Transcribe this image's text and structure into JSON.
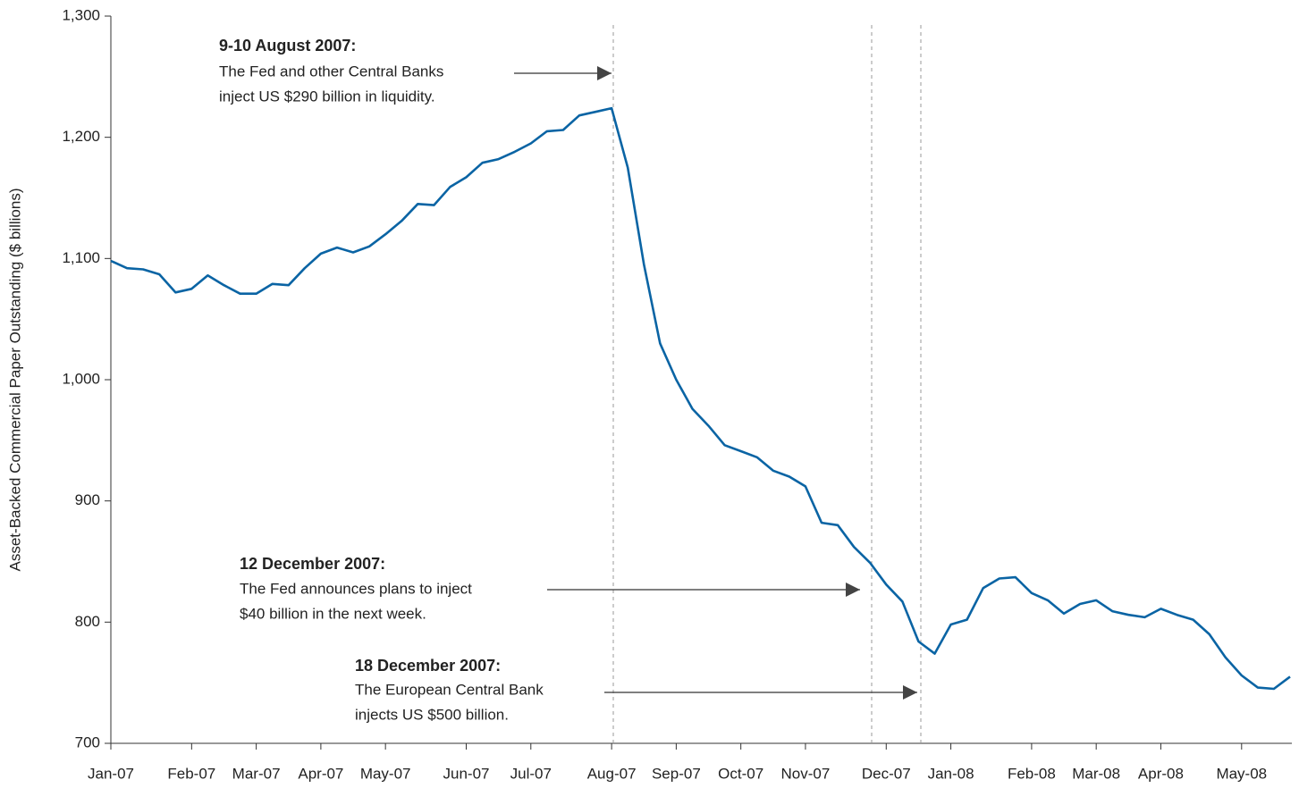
{
  "chart_data": {
    "type": "line",
    "y_label": "Asset-Backed Commercial Paper Outstanding ($ billions)",
    "categories": [
      "Jan-07",
      null,
      null,
      null,
      null,
      "Feb-07",
      null,
      null,
      null,
      "Mar-07",
      null,
      null,
      null,
      "Apr-07",
      null,
      null,
      null,
      "May-07",
      null,
      null,
      null,
      null,
      "Jun-07",
      null,
      null,
      null,
      "Jul-07",
      null,
      null,
      null,
      null,
      "Aug-07",
      null,
      null,
      null,
      "Sep-07",
      null,
      null,
      null,
      "Oct-07",
      null,
      null,
      null,
      "Nov-07",
      null,
      null,
      null,
      null,
      "Dec-07",
      null,
      null,
      null,
      "Jan-08",
      null,
      null,
      null,
      null,
      "Feb-08",
      null,
      null,
      null,
      "Mar-08",
      null,
      null,
      null,
      "Apr-08",
      null,
      null,
      null,
      null,
      "May-08",
      null,
      null,
      null
    ],
    "series": [
      {
        "name": "Asset-Backed Commercial Paper Outstanding",
        "color": "#0a64a4",
        "values": [
          1098,
          1092,
          1091,
          1087,
          1072,
          1075,
          1086,
          1078,
          1071,
          1071,
          1079,
          1078,
          1092,
          1104,
          1109,
          1105,
          1110,
          1120,
          1131,
          1145,
          1144,
          1159,
          1167,
          1179,
          1182,
          1188,
          1195,
          1205,
          1206,
          1218,
          1221,
          1224,
          1175,
          1095,
          1030,
          1000,
          976,
          962,
          946,
          941,
          936,
          925,
          920,
          912,
          882,
          880,
          862,
          849,
          831,
          817,
          784,
          774,
          798,
          802,
          828,
          836,
          837,
          824,
          818,
          807,
          815,
          818,
          809,
          806,
          804,
          811,
          806,
          802,
          790,
          771,
          756,
          746,
          745,
          755
        ]
      }
    ],
    "ylim": [
      700,
      1300
    ],
    "yticks": [
      {
        "value": 700,
        "label": "700"
      },
      {
        "value": 800,
        "label": "800"
      },
      {
        "value": 900,
        "label": "900"
      },
      {
        "value": 1000,
        "label": "1,000"
      },
      {
        "value": 1100,
        "label": "1,100"
      },
      {
        "value": 1200,
        "label": "1,200"
      },
      {
        "value": 1300,
        "label": "1,300"
      }
    ],
    "grid": false,
    "annotations": [
      {
        "title": "9-10 August 2007:",
        "lines": [
          "The Fed and other Central Banks",
          "inject US $290 billion in liquidity."
        ]
      },
      {
        "title": "12 December 2007:",
        "lines": [
          "The Fed announces plans to inject",
          "$40 billion in the next week."
        ]
      },
      {
        "title": "18 December 2007:",
        "lines": [
          "The European Central Bank",
          "injects US $500 billion."
        ]
      }
    ]
  }
}
